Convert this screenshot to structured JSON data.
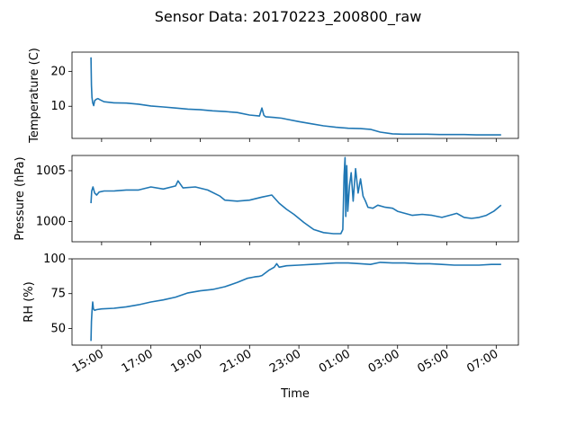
{
  "colors": {
    "line": "#1f77b4",
    "axes": "#000000",
    "background": "#ffffff"
  },
  "chart_data": {
    "type": "line",
    "title": "Sensor Data: 20170223_200800_raw",
    "xlabel": "Time",
    "x_unit": "hours from midnight (day 1), values > 24 are next day",
    "x_ticks": [
      {
        "value": 15,
        "label": "15:00"
      },
      {
        "value": 17,
        "label": "17:00"
      },
      {
        "value": 19,
        "label": "19:00"
      },
      {
        "value": 21,
        "label": "21:00"
      },
      {
        "value": 23,
        "label": "23:00"
      },
      {
        "value": 25,
        "label": "01:00"
      },
      {
        "value": 27,
        "label": "03:00"
      },
      {
        "value": 29,
        "label": "05:00"
      },
      {
        "value": 31,
        "label": "07:00"
      }
    ],
    "xlim": [
      13.8,
      31.9
    ],
    "panels": [
      {
        "ylabel": "Temperature (C)",
        "ylim": [
          0.8,
          25.5
        ],
        "yticks": [
          {
            "value": 10,
            "label": "10"
          },
          {
            "value": 20,
            "label": "20"
          }
        ],
        "series": [
          {
            "x": [
              14.57,
              14.59,
              14.61,
              14.64,
              14.68,
              14.72,
              14.78,
              14.85,
              14.95,
              15.1,
              15.5,
              16.0,
              16.5,
              17.0,
              17.5,
              18.0,
              18.5,
              19.0,
              19.5,
              20.0,
              20.5,
              21.0,
              21.4,
              21.5,
              21.58,
              21.65,
              22.0,
              22.3,
              22.5,
              23.0,
              23.5,
              24.0,
              24.5,
              25.0,
              25.5,
              25.9,
              26.3,
              26.8,
              27.2,
              27.7,
              28.2,
              28.7,
              29.2,
              29.7,
              30.2,
              30.7,
              31.2
            ],
            "y": [
              24.0,
              16.0,
              12.5,
              11.0,
              10.2,
              11.6,
              12.0,
              12.2,
              11.8,
              11.3,
              11.0,
              10.9,
              10.6,
              10.1,
              9.8,
              9.5,
              9.2,
              9.0,
              8.7,
              8.5,
              8.2,
              7.5,
              7.2,
              9.5,
              7.4,
              7.0,
              6.8,
              6.6,
              6.3,
              5.6,
              5.0,
              4.4,
              4.0,
              3.7,
              3.6,
              3.4,
              2.6,
              2.1,
              2.0,
              2.0,
              2.0,
              1.9,
              1.9,
              1.9,
              1.8,
              1.8,
              1.8
            ]
          }
        ]
      },
      {
        "ylabel": "Pressure (hPa)",
        "ylim": [
          998.0,
          1006.5
        ],
        "yticks": [
          {
            "value": 1000,
            "label": "1000"
          },
          {
            "value": 1005,
            "label": "1005"
          }
        ],
        "series": [
          {
            "x": [
              14.57,
              14.6,
              14.65,
              14.72,
              14.8,
              14.9,
              15.1,
              15.5,
              16.0,
              16.5,
              17.0,
              17.5,
              18.0,
              18.1,
              18.3,
              18.8,
              19.3,
              19.8,
              20.0,
              20.5,
              21.0,
              21.5,
              21.9,
              22.2,
              22.5,
              22.8,
              23.2,
              23.6,
              24.0,
              24.4,
              24.7,
              24.78,
              24.83,
              24.87,
              24.9,
              24.94,
              24.98,
              25.05,
              25.12,
              25.2,
              25.3,
              25.4,
              25.5,
              25.6,
              25.7,
              25.8,
              26.0,
              26.2,
              26.5,
              26.8,
              27.0,
              27.3,
              27.6,
              28.0,
              28.4,
              28.8,
              29.1,
              29.4,
              29.7,
              30.0,
              30.3,
              30.6,
              30.9,
              31.2
            ],
            "y": [
              1001.8,
              1003.0,
              1003.4,
              1002.8,
              1002.6,
              1002.9,
              1003.0,
              1003.0,
              1003.1,
              1003.1,
              1003.4,
              1003.2,
              1003.5,
              1004.0,
              1003.3,
              1003.4,
              1003.1,
              1002.5,
              1002.1,
              1002.0,
              1002.1,
              1002.4,
              1002.6,
              1001.8,
              1001.2,
              1000.7,
              999.9,
              999.2,
              998.9,
              998.8,
              998.8,
              999.2,
              1004.5,
              1006.3,
              1000.5,
              1005.5,
              1001.0,
              1003.5,
              1004.8,
              1002.0,
              1005.2,
              1002.8,
              1004.2,
              1002.5,
              1002.0,
              1001.4,
              1001.3,
              1001.6,
              1001.4,
              1001.3,
              1001.0,
              1000.8,
              1000.6,
              1000.7,
              1000.6,
              1000.4,
              1000.6,
              1000.8,
              1000.4,
              1000.3,
              1000.4,
              1000.6,
              1001.0,
              1001.6
            ]
          }
        ]
      },
      {
        "ylabel": "RH (%)",
        "ylim": [
          38.0,
          100.0
        ],
        "yticks": [
          {
            "value": 50,
            "label": "50"
          },
          {
            "value": 75,
            "label": "75"
          },
          {
            "value": 100,
            "label": "100"
          }
        ],
        "series": [
          {
            "x": [
              14.57,
              14.59,
              14.61,
              14.64,
              14.67,
              14.72,
              14.8,
              15.0,
              15.5,
              16.0,
              16.5,
              17.0,
              17.5,
              18.0,
              18.5,
              19.0,
              19.5,
              20.0,
              20.5,
              20.9,
              21.2,
              21.4,
              21.5,
              21.8,
              22.0,
              22.1,
              22.2,
              22.5,
              23.0,
              23.5,
              24.0,
              24.5,
              25.0,
              25.5,
              25.9,
              26.3,
              26.8,
              27.3,
              27.8,
              28.3,
              28.8,
              29.3,
              29.8,
              30.3,
              30.8,
              31.2
            ],
            "y": [
              41.0,
              55.0,
              62.0,
              69.0,
              64.0,
              63.0,
              63.5,
              64.0,
              64.5,
              65.5,
              67.0,
              69.0,
              70.5,
              72.5,
              75.5,
              77.0,
              78.0,
              80.0,
              83.0,
              86.0,
              87.0,
              87.5,
              88.0,
              92.0,
              94.0,
              96.5,
              94.0,
              95.0,
              95.5,
              96.0,
              96.5,
              97.0,
              97.0,
              96.5,
              96.0,
              97.5,
              97.0,
              97.0,
              96.5,
              96.5,
              96.0,
              95.5,
              95.5,
              95.5,
              96.0,
              96.0
            ]
          }
        ]
      }
    ],
    "grid": false,
    "legend": "none"
  }
}
